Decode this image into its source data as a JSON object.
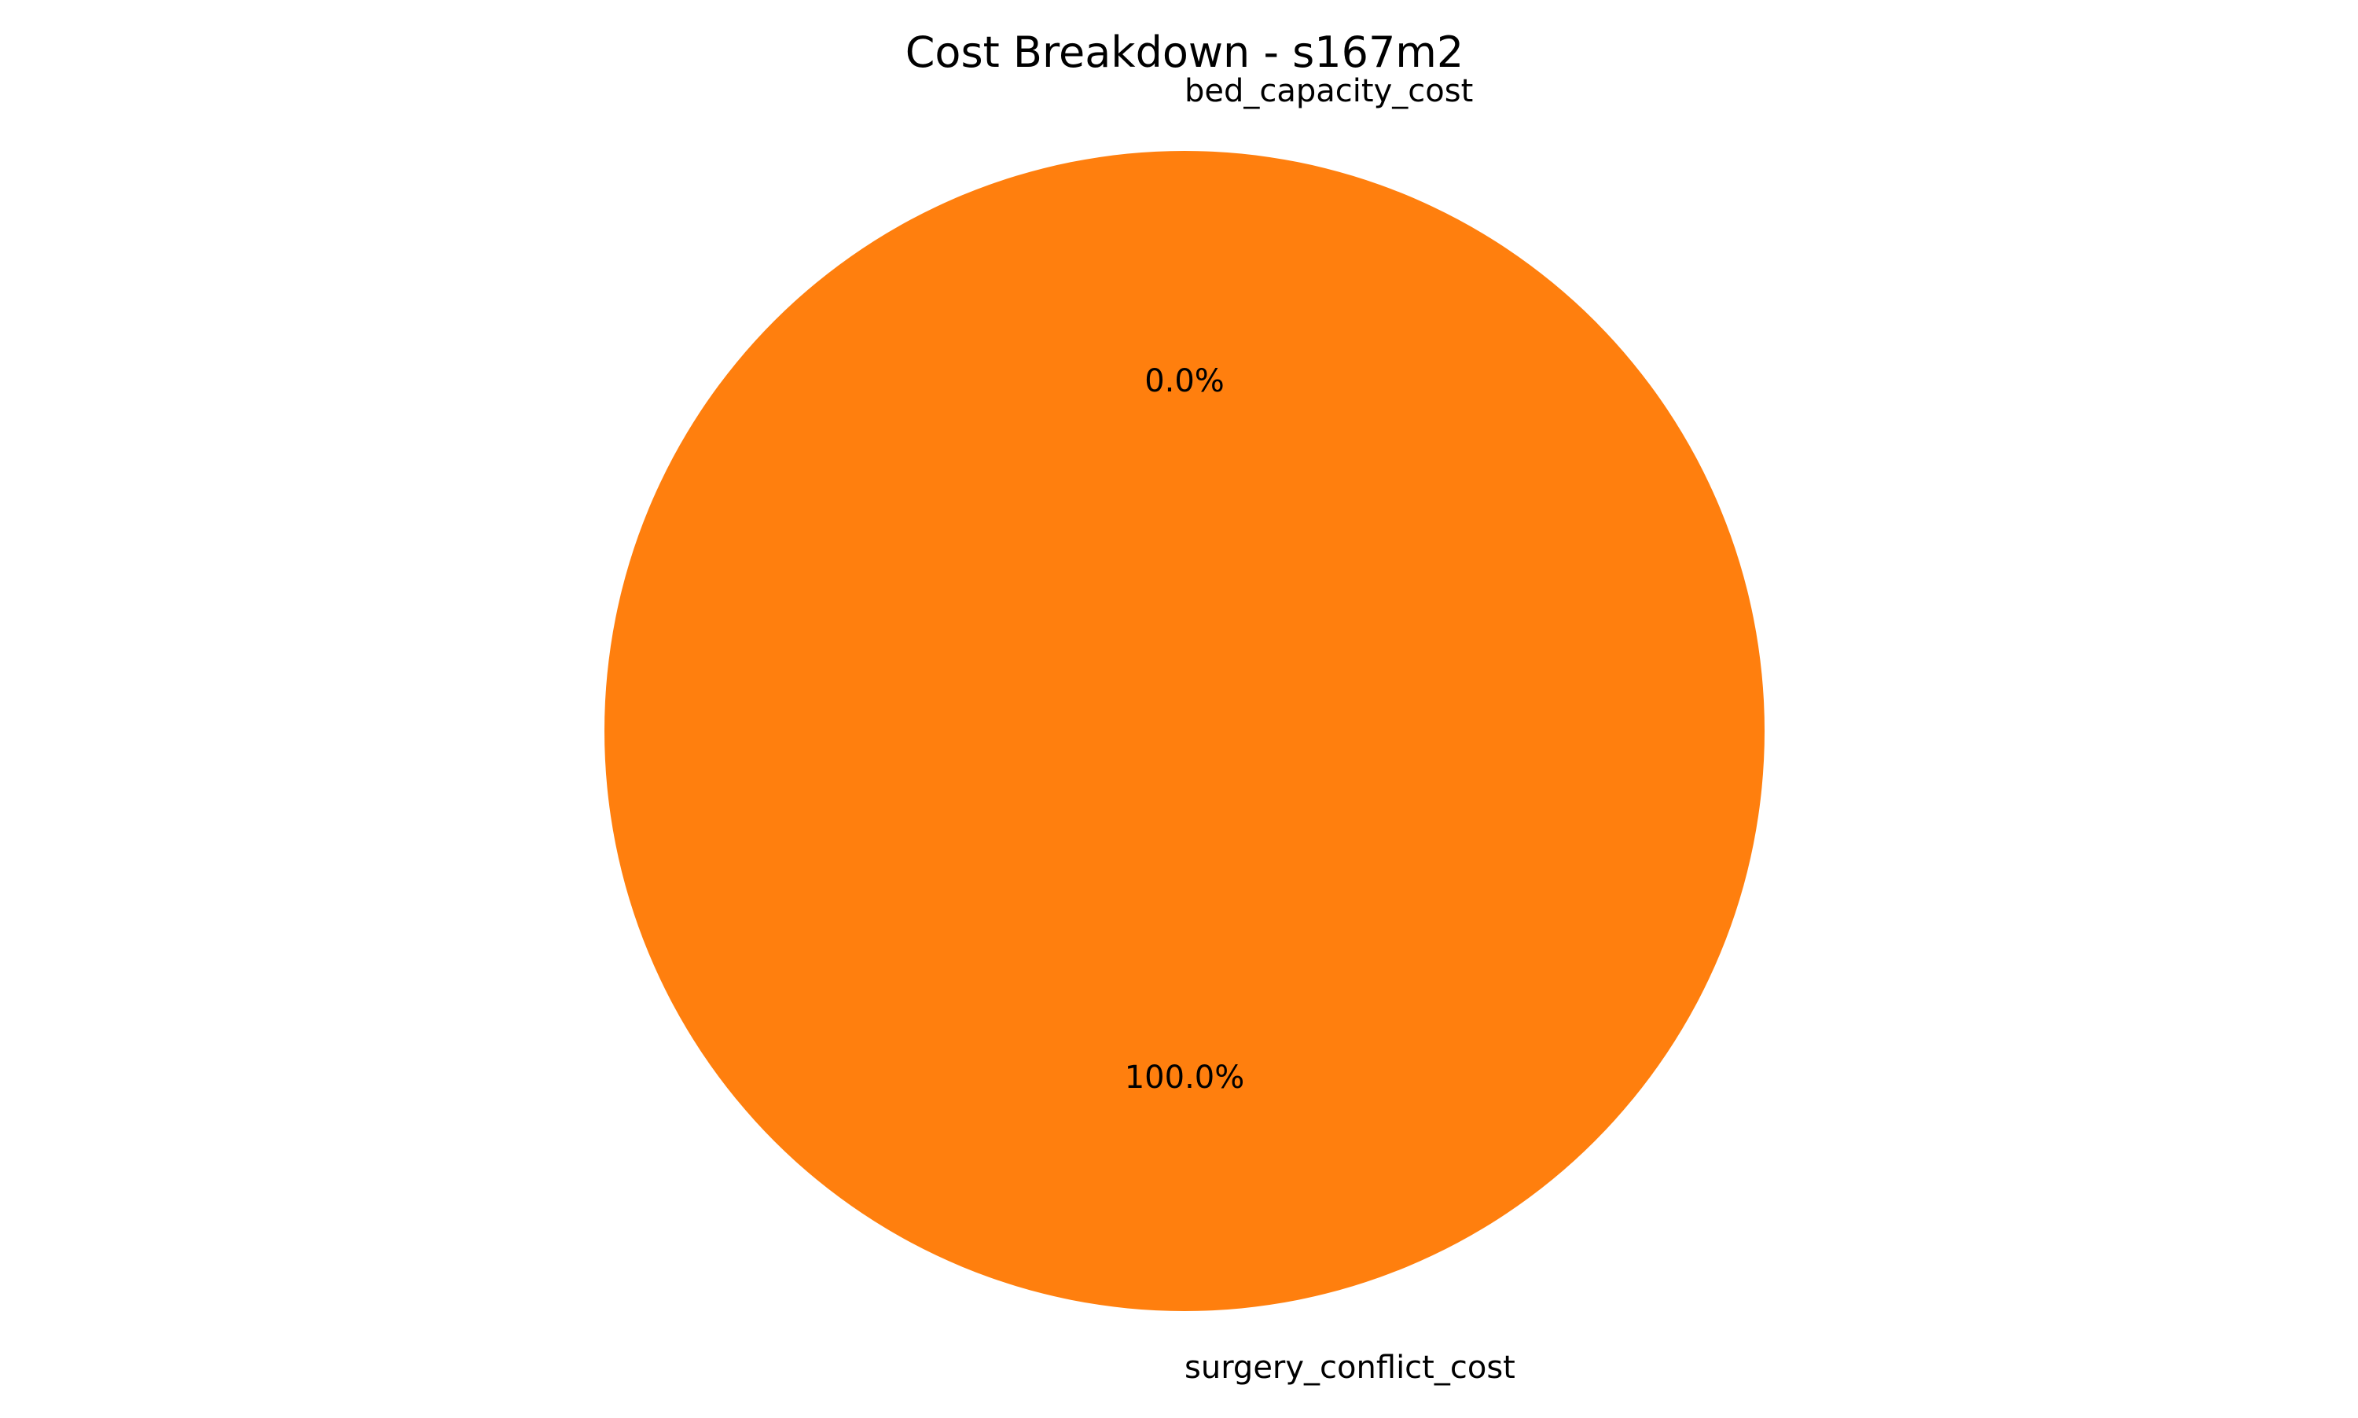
{
  "chart_data": {
    "type": "pie",
    "title": "Cost Breakdown - s167m2",
    "categories": [
      "bed_capacity_cost",
      "surgery_conflict_cost"
    ],
    "values": [
      0.0,
      100.0
    ],
    "percent_labels": [
      "0.0%",
      "100.0%"
    ],
    "colors": [
      "#1f77b4",
      "#ff7f0e"
    ],
    "start_angle_deg": 90,
    "legend": "none"
  }
}
